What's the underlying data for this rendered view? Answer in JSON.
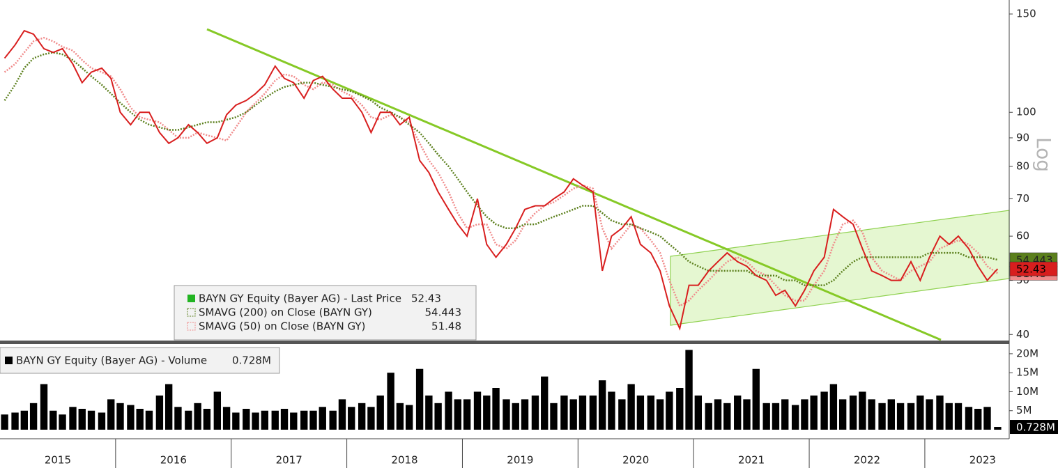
{
  "chart_data": [
    {
      "type": "line",
      "log_scale": true,
      "scale_label": "Log",
      "x": [
        2015.04,
        2015.13,
        2015.21,
        2015.29,
        2015.38,
        2015.46,
        2015.54,
        2015.63,
        2015.71,
        2015.79,
        2015.88,
        2015.96,
        2016.04,
        2016.13,
        2016.21,
        2016.29,
        2016.38,
        2016.46,
        2016.54,
        2016.63,
        2016.71,
        2016.79,
        2016.88,
        2016.96,
        2017.04,
        2017.13,
        2017.21,
        2017.29,
        2017.38,
        2017.46,
        2017.54,
        2017.63,
        2017.71,
        2017.79,
        2017.88,
        2017.96,
        2018.04,
        2018.13,
        2018.21,
        2018.29,
        2018.38,
        2018.46,
        2018.54,
        2018.63,
        2018.71,
        2018.79,
        2018.88,
        2018.96,
        2019.04,
        2019.13,
        2019.21,
        2019.29,
        2019.38,
        2019.46,
        2019.54,
        2019.63,
        2019.71,
        2019.79,
        2019.88,
        2019.96,
        2020.04,
        2020.13,
        2020.21,
        2020.29,
        2020.38,
        2020.46,
        2020.54,
        2020.63,
        2020.71,
        2020.79,
        2020.88,
        2020.96,
        2021.04,
        2021.13,
        2021.21,
        2021.29,
        2021.38,
        2021.46,
        2021.54,
        2021.63,
        2021.71,
        2021.79,
        2021.88,
        2021.96,
        2022.04,
        2022.13,
        2022.21,
        2022.29,
        2022.38,
        2022.46,
        2022.54,
        2022.63,
        2022.71,
        2022.79,
        2022.88,
        2022.96,
        2023.04,
        2023.13,
        2023.21,
        2023.29,
        2023.38,
        2023.46,
        2023.54,
        2023.63
      ],
      "series": [
        {
          "name": "BAYN GY Equity (Bayer AG) - Last Price",
          "color": "#d81e1e",
          "last_value": 52.43,
          "values": [
            125,
            132,
            140,
            138,
            130,
            128,
            130,
            122,
            113,
            118,
            120,
            115,
            100,
            95,
            100,
            100,
            92,
            88,
            90,
            95,
            92,
            88,
            90,
            99,
            103,
            105,
            108,
            112,
            121,
            115,
            113,
            106,
            114,
            116,
            110,
            106,
            106,
            100,
            92,
            100,
            100,
            95,
            98,
            82,
            78,
            72,
            67,
            63,
            60,
            70,
            58,
            55,
            58,
            62,
            67,
            68,
            68,
            70,
            72,
            76,
            74,
            72,
            52,
            60,
            62,
            65,
            58,
            56,
            52,
            45,
            41,
            49,
            49,
            52,
            54,
            56,
            54,
            53,
            51,
            50,
            47,
            48,
            45,
            48,
            52,
            55,
            67,
            65,
            63,
            57,
            52,
            51,
            50,
            50,
            54,
            50,
            55,
            60,
            58,
            60,
            57,
            53,
            50,
            52.43
          ]
        },
        {
          "name": "SMAVG (200)  on Close (BAYN GY)",
          "color": "#5b7f1c",
          "last_value": 54.443,
          "values": [
            105,
            112,
            120,
            125,
            127,
            128,
            127,
            124,
            120,
            116,
            112,
            108,
            104,
            100,
            97,
            95,
            94,
            93,
            93,
            94,
            95,
            96,
            96,
            97,
            98,
            100,
            103,
            106,
            109,
            111,
            112,
            113,
            113,
            112,
            111,
            110,
            109,
            107,
            105,
            102,
            100,
            98,
            95,
            92,
            88,
            84,
            80,
            76,
            72,
            68,
            65,
            63,
            62,
            62,
            63,
            63,
            64,
            65,
            66,
            67,
            68,
            68,
            66,
            64,
            63,
            63,
            62,
            61,
            60,
            58,
            56,
            54,
            53,
            52,
            52,
            52,
            52,
            52,
            51,
            51,
            51,
            50,
            50,
            49,
            49,
            49,
            50,
            52,
            54,
            55,
            55,
            55,
            55,
            55,
            55,
            55,
            56,
            56,
            56,
            56,
            55,
            55,
            55,
            54.443
          ]
        },
        {
          "name": "SMAVG (50)  on Close (BAYN GY)",
          "color": "#f08a8a",
          "last_value": 51.48,
          "values": [
            118,
            122,
            128,
            134,
            136,
            134,
            131,
            129,
            124,
            120,
            118,
            116,
            110,
            102,
            98,
            97,
            96,
            93,
            90,
            90,
            92,
            91,
            90,
            89,
            94,
            100,
            104,
            108,
            114,
            117,
            116,
            112,
            110,
            113,
            112,
            109,
            107,
            103,
            98,
            97,
            99,
            98,
            96,
            88,
            82,
            78,
            72,
            66,
            62,
            63,
            63,
            58,
            57,
            59,
            63,
            66,
            68,
            69,
            71,
            73,
            74,
            73,
            62,
            57,
            60,
            63,
            62,
            59,
            56,
            50,
            45,
            46,
            48,
            50,
            52,
            54,
            55,
            54,
            52,
            51,
            49,
            47,
            46,
            46,
            49,
            52,
            58,
            63,
            64,
            61,
            55,
            52,
            51,
            50,
            52,
            53,
            54,
            57,
            58,
            59,
            58,
            56,
            53,
            51.48
          ]
        }
      ],
      "xlim": [
        2015.0,
        2023.73
      ],
      "ylim": [
        38.9,
        158.9
      ],
      "yticks": [
        150,
        100,
        90,
        80,
        70,
        60,
        50,
        40
      ]
    },
    {
      "type": "bar",
      "name": "BAYN GY Equity (Bayer AG) - Volume",
      "color": "#000000",
      "last_value": 728000,
      "last_label": "0.728M",
      "x": [
        2015.04,
        2015.13,
        2015.21,
        2015.29,
        2015.38,
        2015.46,
        2015.54,
        2015.63,
        2015.71,
        2015.79,
        2015.88,
        2015.96,
        2016.04,
        2016.13,
        2016.21,
        2016.29,
        2016.38,
        2016.46,
        2016.54,
        2016.63,
        2016.71,
        2016.79,
        2016.88,
        2016.96,
        2017.04,
        2017.13,
        2017.21,
        2017.29,
        2017.38,
        2017.46,
        2017.54,
        2017.63,
        2017.71,
        2017.79,
        2017.88,
        2017.96,
        2018.04,
        2018.13,
        2018.21,
        2018.29,
        2018.38,
        2018.46,
        2018.54,
        2018.63,
        2018.71,
        2018.79,
        2018.88,
        2018.96,
        2019.04,
        2019.13,
        2019.21,
        2019.29,
        2019.38,
        2019.46,
        2019.54,
        2019.63,
        2019.71,
        2019.79,
        2019.88,
        2019.96,
        2020.04,
        2020.13,
        2020.21,
        2020.29,
        2020.38,
        2020.46,
        2020.54,
        2020.63,
        2020.71,
        2020.79,
        2020.88,
        2020.96,
        2021.04,
        2021.13,
        2021.21,
        2021.29,
        2021.38,
        2021.46,
        2021.54,
        2021.63,
        2021.71,
        2021.79,
        2021.88,
        2021.96,
        2022.04,
        2022.13,
        2022.21,
        2022.29,
        2022.38,
        2022.46,
        2022.54,
        2022.63,
        2022.71,
        2022.79,
        2022.88,
        2022.96,
        2023.04,
        2023.13,
        2023.21,
        2023.29,
        2023.38,
        2023.46,
        2023.54,
        2023.63
      ],
      "values": [
        4000000,
        4500000,
        5000000,
        7000000,
        12000000,
        5000000,
        4000000,
        6000000,
        5500000,
        5000000,
        4500000,
        8000000,
        7000000,
        6500000,
        5500000,
        5000000,
        9000000,
        12000000,
        6000000,
        5000000,
        7000000,
        5500000,
        10000000,
        6000000,
        4500000,
        5500000,
        4500000,
        5000000,
        5000000,
        5500000,
        4500000,
        5000000,
        5000000,
        6000000,
        5000000,
        8000000,
        6000000,
        7000000,
        6000000,
        9000000,
        15000000,
        7000000,
        6500000,
        16000000,
        9000000,
        7000000,
        10000000,
        8000000,
        8000000,
        10000000,
        9000000,
        11000000,
        8000000,
        7000000,
        8000000,
        9000000,
        14000000,
        7000000,
        9000000,
        8000000,
        9000000,
        9000000,
        13000000,
        10000000,
        8000000,
        12000000,
        9000000,
        9000000,
        8000000,
        10000000,
        11000000,
        21000000,
        9000000,
        7000000,
        8000000,
        7000000,
        9000000,
        8000000,
        16000000,
        7000000,
        7000000,
        8000000,
        6500000,
        8000000,
        9000000,
        10000000,
        12000000,
        8000000,
        9000000,
        10000000,
        8000000,
        7000000,
        8000000,
        7000000,
        7000000,
        9000000,
        8000000,
        9000000,
        7000000,
        7000000,
        6000000,
        5500000,
        6000000,
        728000
      ],
      "xlim": [
        2015.0,
        2023.73
      ],
      "ylim": [
        0,
        22000000
      ],
      "yticks": [
        {
          "value": 20000000,
          "label": "20M"
        },
        {
          "value": 15000000,
          "label": "15M"
        },
        {
          "value": 10000000,
          "label": "10M"
        },
        {
          "value": 5000000,
          "label": "5M"
        }
      ],
      "xticks": [
        {
          "value": 2015.5,
          "label": "2015"
        },
        {
          "value": 2016.5,
          "label": "2016"
        },
        {
          "value": 2017.5,
          "label": "2017"
        },
        {
          "value": 2018.5,
          "label": "2018"
        },
        {
          "value": 2019.5,
          "label": "2019"
        },
        {
          "value": 2020.5,
          "label": "2020"
        },
        {
          "value": 2021.5,
          "label": "2021"
        },
        {
          "value": 2022.5,
          "label": "2022"
        },
        {
          "value": 2023.5,
          "label": "2023"
        }
      ]
    }
  ]
}
